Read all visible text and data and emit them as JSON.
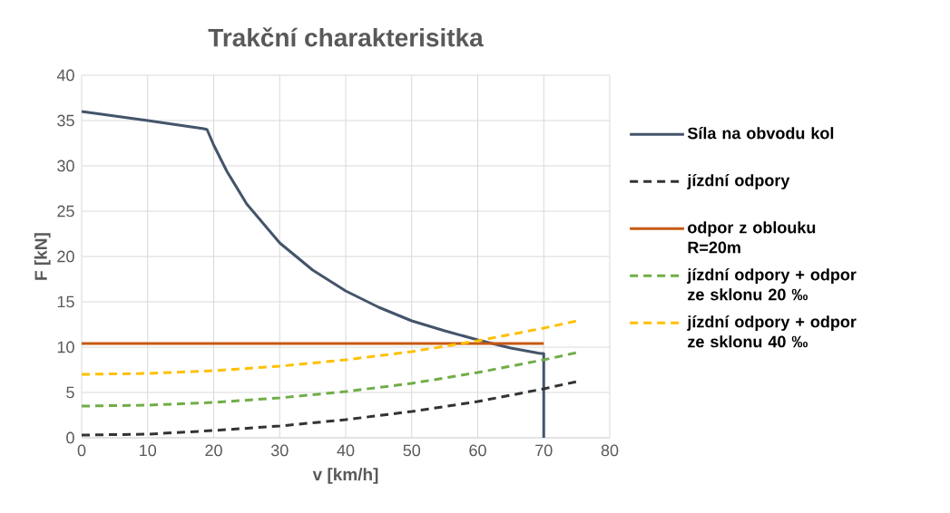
{
  "chart_data": {
    "type": "line",
    "title": "Trakční charakterisitka",
    "xlabel": "v [km/h]",
    "ylabel": "F [kN]",
    "xlim": [
      0,
      80
    ],
    "ylim": [
      0,
      40
    ],
    "xticks": [
      0,
      10,
      20,
      30,
      40,
      50,
      60,
      70,
      80
    ],
    "yticks": [
      0,
      5,
      10,
      15,
      20,
      25,
      30,
      35,
      40
    ],
    "grid": true,
    "legend": "right",
    "series": [
      {
        "name": "Síla na obvodu kol",
        "color": "#44546a",
        "line_style": "solid",
        "x": [
          0,
          10,
          18.5,
          19,
          20,
          22,
          25,
          30,
          35,
          40,
          45,
          50,
          55,
          60,
          65,
          69.5,
          70,
          70
        ],
        "values": [
          36,
          35,
          34.1,
          34,
          32.3,
          29.4,
          25.8,
          21.5,
          18.5,
          16.2,
          14.4,
          12.9,
          11.8,
          10.8,
          9.9,
          9.3,
          9.3,
          0
        ]
      },
      {
        "name": "jízdní odpory",
        "color": "#333333",
        "line_style": "dashed",
        "x": [
          0,
          10,
          20,
          30,
          40,
          50,
          60,
          70,
          75
        ],
        "values": [
          0.3,
          0.4,
          0.8,
          1.3,
          2.0,
          2.9,
          4.0,
          5.4,
          6.2
        ]
      },
      {
        "name": "odpor z oblouku R=20m",
        "color": "#c65911",
        "line_style": "solid",
        "x": [
          0,
          70
        ],
        "values": [
          10.4,
          10.4
        ]
      },
      {
        "name": "jízdní odpory + odpor ze sklonu 20 ‰",
        "color": "#70ad47",
        "line_style": "dashed",
        "x": [
          0,
          10,
          20,
          30,
          40,
          50,
          60,
          70,
          75
        ],
        "values": [
          3.5,
          3.6,
          3.9,
          4.4,
          5.1,
          6.0,
          7.2,
          8.6,
          9.4
        ]
      },
      {
        "name": "jízdní odpory + odpor ze sklonu 40 ‰",
        "color": "#ffc000",
        "line_style": "dashed",
        "x": [
          0,
          10,
          20,
          30,
          40,
          50,
          60,
          70,
          75
        ],
        "values": [
          7.0,
          7.1,
          7.4,
          7.9,
          8.6,
          9.5,
          10.7,
          12.1,
          12.9
        ]
      }
    ]
  }
}
